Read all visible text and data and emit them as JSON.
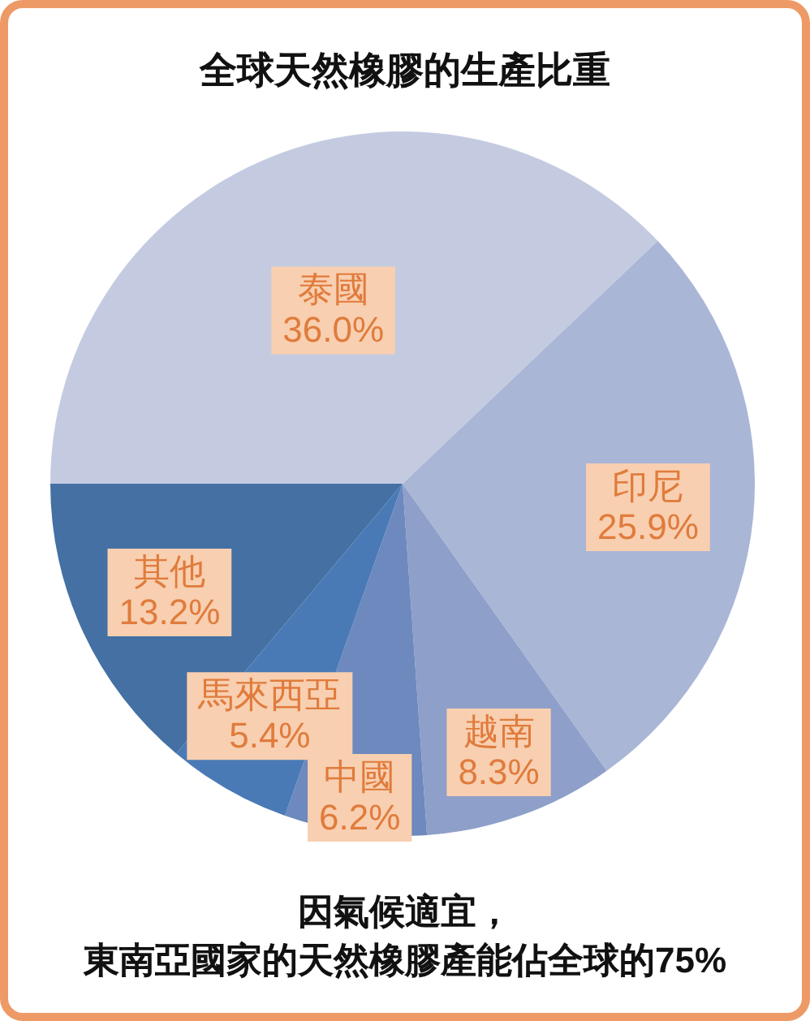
{
  "chart_data": {
    "type": "pie",
    "title": "全球天然橡膠的生產比重",
    "categories": [
      "泰國",
      "印尼",
      "越南",
      "中國",
      "馬來西亞",
      "其他"
    ],
    "values": [
      36.0,
      25.9,
      8.3,
      6.2,
      5.4,
      13.2
    ],
    "colors": [
      "#c4cbe1",
      "#aab6d6",
      "#8e9fc9",
      "#6d89bd",
      "#4a7ab6",
      "#4470a3"
    ],
    "value_labels": [
      "36.0%",
      "25.9%",
      "8.3%",
      "6.2%",
      "5.4%",
      "13.2%"
    ],
    "annotations": [
      "因氣候適宜，",
      "東南亞國家的天然橡膠產能佔全球的75%"
    ]
  }
}
